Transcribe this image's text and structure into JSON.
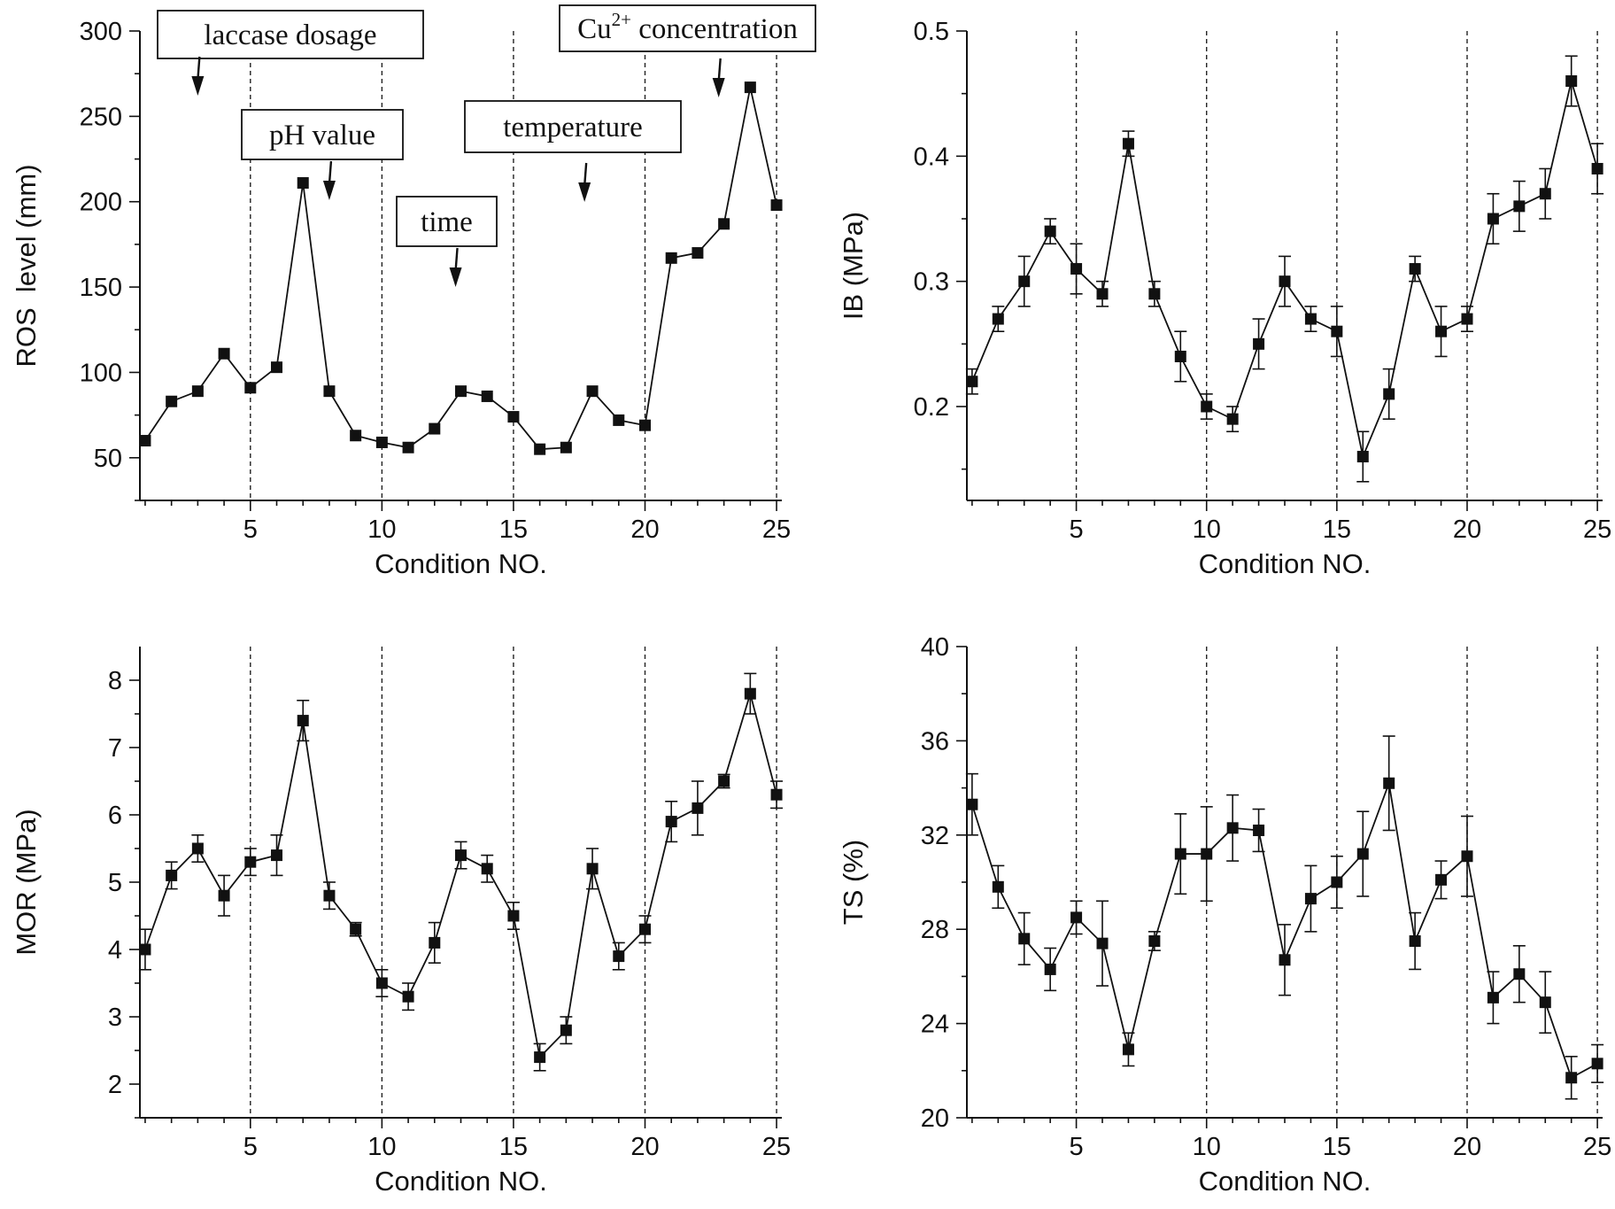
{
  "chart_data": [
    {
      "type": "line",
      "xlabel": "Condition NO.",
      "ylabel": "ROS  level (mm)",
      "xlim": [
        0.8,
        25.2
      ],
      "ylim": [
        25,
        300
      ],
      "xticks": [
        5,
        10,
        15,
        20,
        25
      ],
      "yticks": [
        50,
        100,
        150,
        200,
        250,
        300
      ],
      "boundaries": [
        5,
        10,
        15,
        20,
        25
      ],
      "x": [
        1,
        2,
        3,
        4,
        5,
        6,
        7,
        8,
        9,
        10,
        11,
        12,
        13,
        14,
        15,
        16,
        17,
        18,
        19,
        20,
        21,
        22,
        23,
        24,
        25
      ],
      "values": [
        60,
        83,
        89,
        111,
        91,
        103,
        211,
        89,
        63,
        59,
        56,
        67,
        89,
        86,
        74,
        55,
        56,
        89,
        72,
        69,
        167,
        170,
        187,
        267,
        198
      ],
      "errors": null,
      "annotations": [
        {
          "text": "laccase dosage",
          "x": 3
        },
        {
          "text": "pH value",
          "x": 8
        },
        {
          "text": "time",
          "x": 12.8
        },
        {
          "text": "temperature",
          "x": 17.7
        },
        {
          "text": "Cu",
          "sup": "2+",
          "rest": " concentration",
          "x": 22.8
        }
      ]
    },
    {
      "type": "line",
      "xlabel": "Condition NO.",
      "ylabel": "IB (MPa)",
      "xlim": [
        0.8,
        25.2
      ],
      "ylim": [
        0.125,
        0.5
      ],
      "xticks": [
        5,
        10,
        15,
        20,
        25
      ],
      "yticks": [
        0.2,
        0.3,
        0.4,
        0.5
      ],
      "boundaries": [
        5,
        10,
        15,
        20,
        25
      ],
      "x": [
        1,
        2,
        3,
        4,
        5,
        6,
        7,
        8,
        9,
        10,
        11,
        12,
        13,
        14,
        15,
        16,
        17,
        18,
        19,
        20,
        21,
        22,
        23,
        24,
        25
      ],
      "values": [
        0.22,
        0.27,
        0.3,
        0.34,
        0.31,
        0.29,
        0.41,
        0.29,
        0.24,
        0.2,
        0.19,
        0.25,
        0.3,
        0.27,
        0.26,
        0.16,
        0.21,
        0.31,
        0.26,
        0.27,
        0.35,
        0.36,
        0.37,
        0.46,
        0.39
      ],
      "errors": [
        0.01,
        0.01,
        0.02,
        0.01,
        0.02,
        0.01,
        0.01,
        0.01,
        0.02,
        0.01,
        0.01,
        0.02,
        0.02,
        0.01,
        0.02,
        0.02,
        0.02,
        0.01,
        0.02,
        0.01,
        0.02,
        0.02,
        0.02,
        0.02,
        0.02
      ]
    },
    {
      "type": "line",
      "xlabel": "Condition NO.",
      "ylabel": "MOR (MPa)",
      "xlim": [
        0.8,
        25.2
      ],
      "ylim": [
        1.5,
        8.5
      ],
      "xticks": [
        5,
        10,
        15,
        20,
        25
      ],
      "yticks": [
        2,
        3,
        4,
        5,
        6,
        7,
        8
      ],
      "boundaries": [
        5,
        10,
        15,
        20,
        25
      ],
      "x": [
        1,
        2,
        3,
        4,
        5,
        6,
        7,
        8,
        9,
        10,
        11,
        12,
        13,
        14,
        15,
        16,
        17,
        18,
        19,
        20,
        21,
        22,
        23,
        24,
        25
      ],
      "values": [
        4.0,
        5.1,
        5.5,
        4.8,
        5.3,
        5.4,
        7.4,
        4.8,
        4.3,
        3.5,
        3.3,
        4.1,
        5.4,
        5.2,
        4.5,
        2.4,
        2.8,
        5.2,
        3.9,
        4.3,
        5.9,
        6.1,
        6.5,
        7.8,
        6.3
      ],
      "errors": [
        0.3,
        0.2,
        0.2,
        0.3,
        0.2,
        0.3,
        0.3,
        0.2,
        0.1,
        0.2,
        0.2,
        0.3,
        0.2,
        0.2,
        0.2,
        0.2,
        0.2,
        0.3,
        0.2,
        0.2,
        0.3,
        0.4,
        0.1,
        0.3,
        0.2
      ]
    },
    {
      "type": "line",
      "xlabel": "Condition NO.",
      "ylabel": "TS (%)",
      "xlim": [
        0.8,
        25.2
      ],
      "ylim": [
        20,
        40
      ],
      "xticks": [
        5,
        10,
        15,
        20,
        25
      ],
      "yticks": [
        20,
        24,
        28,
        32,
        36,
        40
      ],
      "boundaries": [
        5,
        10,
        15,
        20,
        25
      ],
      "x": [
        1,
        2,
        3,
        4,
        5,
        6,
        7,
        8,
        9,
        10,
        11,
        12,
        13,
        14,
        15,
        16,
        17,
        18,
        19,
        20,
        21,
        22,
        23,
        24,
        25
      ],
      "values": [
        33.3,
        29.8,
        27.6,
        26.3,
        28.5,
        27.4,
        22.9,
        27.5,
        31.2,
        31.2,
        32.3,
        32.2,
        26.7,
        29.3,
        30.0,
        31.2,
        34.2,
        27.5,
        30.1,
        31.1,
        25.1,
        26.1,
        24.9,
        21.7,
        22.3
      ],
      "errors": [
        1.3,
        0.9,
        1.1,
        0.9,
        0.7,
        1.8,
        0.7,
        0.4,
        1.7,
        2.0,
        1.4,
        0.9,
        1.5,
        1.4,
        1.1,
        1.8,
        2.0,
        1.2,
        0.8,
        1.7,
        1.1,
        1.2,
        1.3,
        0.9,
        0.8
      ]
    }
  ]
}
